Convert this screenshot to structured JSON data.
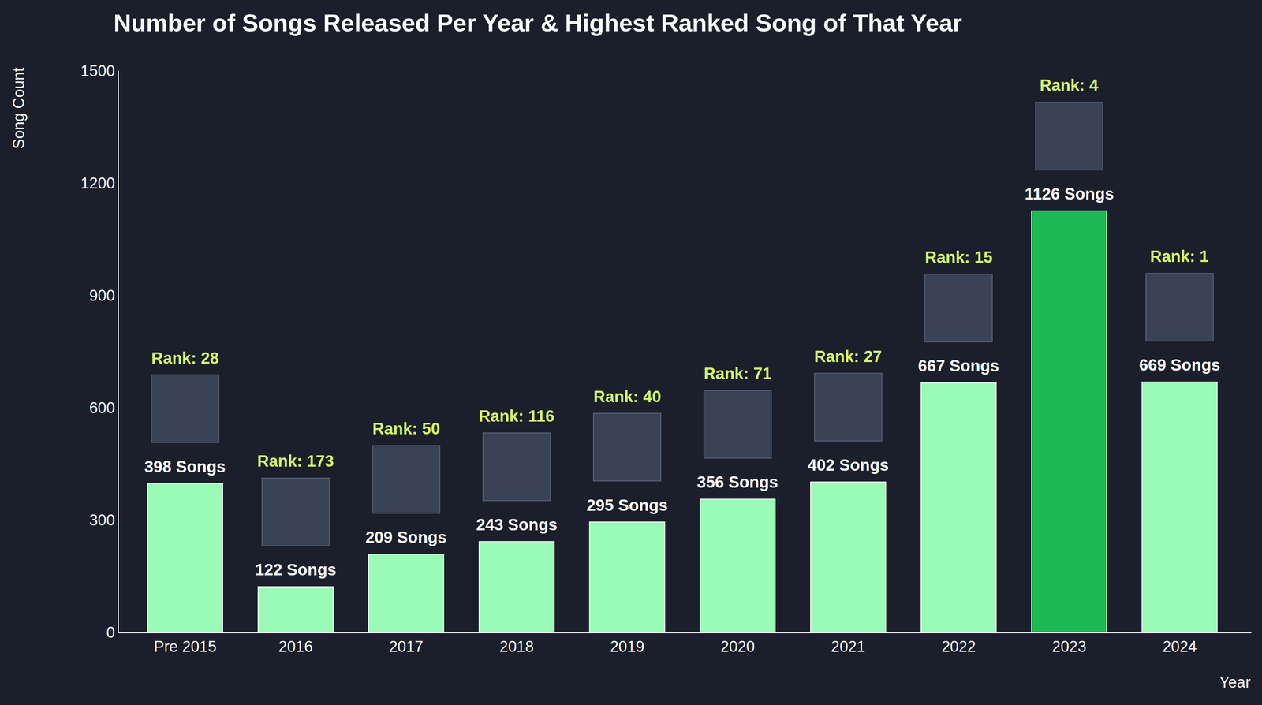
{
  "chart_data": {
    "type": "bar",
    "title": "Number of Songs Released Per Year & Highest Ranked Song of That Year",
    "x_label": "Year",
    "y_label": "Song Count",
    "categories": [
      "Pre 2015",
      "2016",
      "2017",
      "2018",
      "2019",
      "2020",
      "2021",
      "2022",
      "2023",
      "2024"
    ],
    "values": [
      398,
      122,
      209,
      243,
      295,
      356,
      402,
      667,
      1126,
      669
    ],
    "value_labels": [
      "398 Songs",
      "122 Songs",
      "209 Songs",
      "243 Songs",
      "295 Songs",
      "356 Songs",
      "402 Songs",
      "667 Songs",
      "1126 Songs",
      "669 Songs"
    ],
    "annotations": [
      "Rank: 28",
      "Rank: 173",
      "Rank: 50",
      "Rank: 116",
      "Rank: 40",
      "Rank: 71",
      "Rank: 27",
      "Rank: 15",
      "Rank: 4",
      "Rank: 1"
    ],
    "colors": [
      "#9afbb6",
      "#9afbb6",
      "#9afbb6",
      "#9afbb6",
      "#9afbb6",
      "#9afbb6",
      "#9afbb6",
      "#9afbb6",
      "#1db954",
      "#9afbb6"
    ],
    "ylim": [
      0,
      1500
    ],
    "yticks": [
      0,
      300,
      600,
      900,
      1200,
      1500
    ],
    "grid": false,
    "data_labels": true
  }
}
